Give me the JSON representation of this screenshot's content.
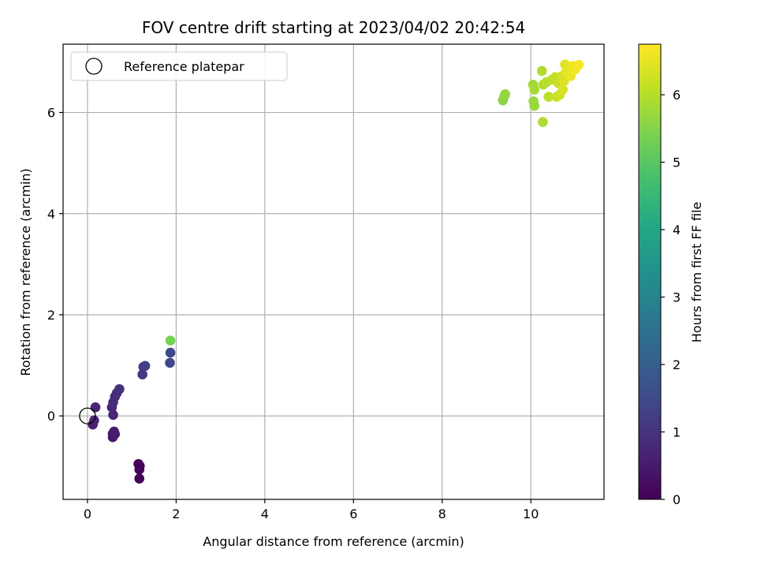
{
  "chart_data": {
    "type": "scatter",
    "title": "FOV centre drift starting at 2023/04/02 20:42:54",
    "xlabel": "Angular distance from reference (arcmin)",
    "ylabel": "Rotation from reference (arcmin)",
    "xlim": [
      -0.55,
      11.65
    ],
    "ylim": [
      -1.65,
      7.35
    ],
    "xticks": [
      0,
      2,
      4,
      6,
      8,
      10
    ],
    "yticks": [
      0,
      2,
      4,
      6
    ],
    "grid": true,
    "legend": {
      "label": "Reference platepar",
      "placement": "top-left"
    },
    "reference_point": {
      "x": 0,
      "y": 0
    },
    "colorbar": {
      "label": "Hours from first FF file",
      "range": [
        0,
        6.75
      ],
      "ticks": [
        0,
        1,
        2,
        3,
        4,
        5,
        6
      ],
      "colormap": "viridis"
    },
    "points": [
      {
        "x": 1.17,
        "y": -1.24,
        "t": 0.02
      },
      {
        "x": 1.17,
        "y": -1.06,
        "t": 0.04
      },
      {
        "x": 1.15,
        "y": -0.95,
        "t": 0.06
      },
      {
        "x": 1.18,
        "y": -0.99,
        "t": 0.08
      },
      {
        "x": 0.57,
        "y": -0.42,
        "t": 0.45
      },
      {
        "x": 0.6,
        "y": -0.31,
        "t": 0.48
      },
      {
        "x": 0.57,
        "y": -0.35,
        "t": 0.5
      },
      {
        "x": 0.62,
        "y": -0.36,
        "t": 0.52
      },
      {
        "x": 0.12,
        "y": -0.17,
        "t": 0.62
      },
      {
        "x": 0.15,
        "y": -0.09,
        "t": 0.64
      },
      {
        "x": 0.18,
        "y": 0.17,
        "t": 0.68
      },
      {
        "x": 0.58,
        "y": 0.02,
        "t": 0.72
      },
      {
        "x": 0.55,
        "y": 0.17,
        "t": 0.76
      },
      {
        "x": 0.58,
        "y": 0.27,
        "t": 0.8
      },
      {
        "x": 0.62,
        "y": 0.38,
        "t": 0.84
      },
      {
        "x": 0.66,
        "y": 0.45,
        "t": 0.88
      },
      {
        "x": 0.72,
        "y": 0.53,
        "t": 0.92
      },
      {
        "x": 1.24,
        "y": 0.82,
        "t": 1.15
      },
      {
        "x": 1.26,
        "y": 0.97,
        "t": 1.2
      },
      {
        "x": 1.3,
        "y": 0.99,
        "t": 1.25
      },
      {
        "x": 1.86,
        "y": 1.05,
        "t": 1.4
      },
      {
        "x": 1.87,
        "y": 1.25,
        "t": 1.45
      },
      {
        "x": 1.87,
        "y": 1.49,
        "t": 5.35
      },
      {
        "x": 9.37,
        "y": 6.24,
        "t": 5.55
      },
      {
        "x": 9.4,
        "y": 6.32,
        "t": 5.6
      },
      {
        "x": 9.42,
        "y": 6.36,
        "t": 5.65
      },
      {
        "x": 10.06,
        "y": 6.22,
        "t": 5.7
      },
      {
        "x": 10.08,
        "y": 6.13,
        "t": 5.72
      },
      {
        "x": 10.05,
        "y": 6.55,
        "t": 5.8
      },
      {
        "x": 10.08,
        "y": 6.45,
        "t": 5.85
      },
      {
        "x": 10.27,
        "y": 5.81,
        "t": 5.9
      },
      {
        "x": 10.25,
        "y": 6.82,
        "t": 5.95
      },
      {
        "x": 10.28,
        "y": 6.55,
        "t": 5.95
      },
      {
        "x": 10.35,
        "y": 6.6,
        "t": 6.0
      },
      {
        "x": 10.4,
        "y": 6.31,
        "t": 6.05
      },
      {
        "x": 10.48,
        "y": 6.65,
        "t": 6.1
      },
      {
        "x": 10.55,
        "y": 6.7,
        "t": 6.15
      },
      {
        "x": 10.58,
        "y": 6.31,
        "t": 6.2
      },
      {
        "x": 10.62,
        "y": 6.58,
        "t": 6.2
      },
      {
        "x": 10.65,
        "y": 6.35,
        "t": 6.25
      },
      {
        "x": 10.7,
        "y": 6.72,
        "t": 6.3
      },
      {
        "x": 10.72,
        "y": 6.45,
        "t": 6.35
      },
      {
        "x": 10.75,
        "y": 6.62,
        "t": 6.4
      },
      {
        "x": 10.77,
        "y": 6.95,
        "t": 6.45
      },
      {
        "x": 10.8,
        "y": 6.8,
        "t": 6.5
      },
      {
        "x": 10.9,
        "y": 6.72,
        "t": 6.55
      },
      {
        "x": 10.95,
        "y": 6.92,
        "t": 6.6
      },
      {
        "x": 11.0,
        "y": 6.85,
        "t": 6.65
      },
      {
        "x": 11.08,
        "y": 6.94,
        "t": 6.7
      }
    ]
  }
}
